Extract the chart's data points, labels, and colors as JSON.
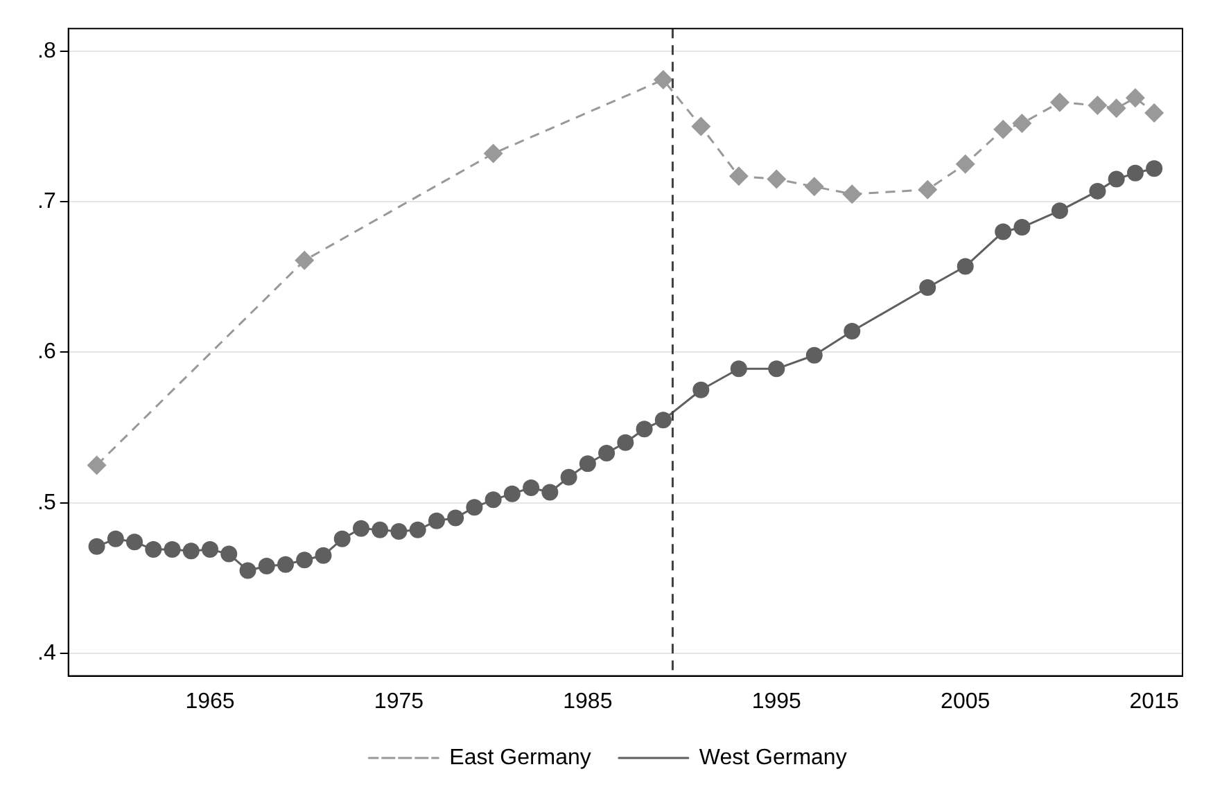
{
  "chart_data": {
    "type": "line",
    "xlim": [
      1957.5,
      2016.5
    ],
    "xticks": [
      1965,
      1975,
      1985,
      1995,
      2005,
      2015
    ],
    "ylim": [
      0.385,
      0.815
    ],
    "yticks": [
      {
        "value": 0.4,
        "label": ".4"
      },
      {
        "value": 0.5,
        "label": ".5"
      },
      {
        "value": 0.6,
        "label": ".6"
      },
      {
        "value": 0.7,
        "label": ".7"
      },
      {
        "value": 0.8,
        "label": ".8"
      }
    ],
    "grid": "y",
    "legend": "bottom",
    "ref_lines": [
      {
        "axis": "x",
        "value": 1989.5,
        "color": "#404040",
        "line_style": "dashed"
      }
    ],
    "series": [
      {
        "name": "East Germany",
        "color": "#999999",
        "marker": "diamond",
        "line_style": "dashed",
        "x": [
          1959,
          1970,
          1980,
          1989,
          1991,
          1993,
          1995,
          1997,
          1999,
          2003,
          2005,
          2007,
          2008,
          2010,
          2012,
          2013,
          2014,
          2015
        ],
        "values": [
          0.525,
          0.661,
          0.732,
          0.781,
          0.75,
          0.717,
          0.715,
          0.71,
          0.705,
          0.708,
          0.725,
          0.748,
          0.752,
          0.766,
          0.764,
          0.762,
          0.769,
          0.759
        ]
      },
      {
        "name": "West Germany",
        "color": "#5f5f5f",
        "marker": "circle",
        "line_style": "solid",
        "x": [
          1959,
          1960,
          1961,
          1962,
          1963,
          1964,
          1965,
          1966,
          1967,
          1968,
          1969,
          1970,
          1971,
          1972,
          1973,
          1974,
          1975,
          1976,
          1977,
          1978,
          1979,
          1980,
          1981,
          1982,
          1983,
          1984,
          1985,
          1986,
          1987,
          1988,
          1989,
          1991,
          1993,
          1995,
          1997,
          1999,
          2003,
          2005,
          2007,
          2008,
          2010,
          2012,
          2013,
          2014,
          2015
        ],
        "values": [
          0.471,
          0.476,
          0.474,
          0.469,
          0.469,
          0.468,
          0.469,
          0.466,
          0.455,
          0.458,
          0.459,
          0.462,
          0.465,
          0.476,
          0.483,
          0.482,
          0.481,
          0.482,
          0.488,
          0.49,
          0.497,
          0.502,
          0.506,
          0.51,
          0.507,
          0.517,
          0.526,
          0.533,
          0.54,
          0.549,
          0.555,
          0.575,
          0.589,
          0.589,
          0.598,
          0.614,
          0.643,
          0.657,
          0.68,
          0.683,
          0.694,
          0.707,
          0.715,
          0.719,
          0.722
        ]
      }
    ]
  }
}
